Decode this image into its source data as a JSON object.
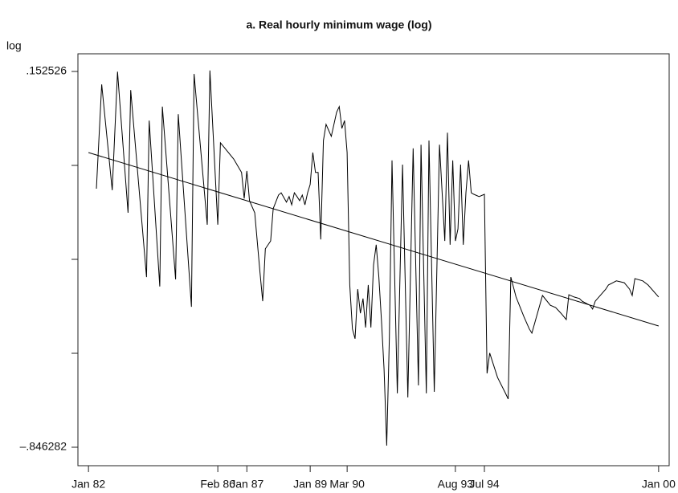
{
  "chart_data": {
    "type": "line",
    "title": "a. Real hourly minimum wage (log)",
    "y_label": "log",
    "xlim": [
      "1981-09",
      "2000-05"
    ],
    "ylim": [
      -0.8954,
      0.1995
    ],
    "xticks": [
      {
        "value": "1982-01",
        "label": "Jan 82"
      },
      {
        "value": "1986-02",
        "label": "Feb 86"
      },
      {
        "value": "1987-01",
        "label": "Jan 87"
      },
      {
        "value": "1989-01",
        "label": "Jan 89"
      },
      {
        "value": "1990-03",
        "label": "Mar 90"
      },
      {
        "value": "1993-08",
        "label": "Aug 93"
      },
      {
        "value": "1994-07",
        "label": "Jul 94"
      },
      {
        "value": "2000-01",
        "label": "Jan 00"
      }
    ],
    "yticks": [
      {
        "value": 0.152526,
        "label": ".152526"
      },
      {
        "value": -0.097176
      },
      {
        "value": -0.346879
      },
      {
        "value": -0.596581
      },
      {
        "value": -0.846282,
        "label": "–.846282"
      }
    ],
    "series": [
      {
        "color": "#000000",
        "x": [
          "1982-04",
          "1982-06",
          "1982-10",
          "1982-12",
          "1983-04",
          "1983-05",
          "1983-11",
          "1983-12",
          "1984-04",
          "1984-05",
          "1984-10",
          "1984-11",
          "1985-04",
          "1985-05",
          "1985-10",
          "1985-11",
          "1986-02",
          "1986-03",
          "1986-08",
          "1986-11",
          "1986-12",
          "1987-01",
          "1987-02",
          "1987-04",
          "1987-06",
          "1987-07",
          "1987-08",
          "1987-10",
          "1987-11",
          "1988-01",
          "1988-02",
          "1988-04",
          "1988-05",
          "1988-06",
          "1988-07",
          "1988-08",
          "1988-09",
          "1988-10",
          "1988-11",
          "1988-12",
          "1989-01",
          "1989-02",
          "1989-03",
          "1989-04",
          "1989-05",
          "1989-06",
          "1989-07",
          "1989-09",
          "1989-11",
          "1989-12",
          "1990-01",
          "1990-02",
          "1990-03",
          "1990-04",
          "1990-05",
          "1990-06",
          "1990-07",
          "1990-08",
          "1990-09",
          "1990-10",
          "1990-11",
          "1990-12",
          "1991-01",
          "1991-02",
          "1991-03",
          "1991-04",
          "1991-05",
          "1991-06",
          "1991-07",
          "1991-08",
          "1991-10",
          "1991-12",
          "1992-02",
          "1992-04",
          "1992-06",
          "1992-07",
          "1992-09",
          "1992-10",
          "1992-12",
          "1993-02",
          "1993-04",
          "1993-05",
          "1993-06",
          "1993-07",
          "1993-08",
          "1993-09",
          "1993-10",
          "1993-11",
          "1993-12",
          "1994-01",
          "1994-02",
          "1994-03",
          "1994-05",
          "1994-07",
          "1994-08",
          "1994-09",
          "1994-12",
          "1995-03",
          "1995-04",
          "1995-05",
          "1995-07",
          "1995-10",
          "1995-12",
          "1996-01",
          "1996-05",
          "1996-08",
          "1996-10",
          "1996-12",
          "1997-02",
          "1997-03",
          "1997-05",
          "1997-07",
          "1997-08",
          "1997-11",
          "1997-12",
          "1998-01",
          "1998-05",
          "1998-06",
          "1998-09",
          "1998-12",
          "1999-02",
          "1999-03",
          "1999-04",
          "1999-07",
          "1999-09",
          "2000-01"
        ],
        "values": [
          -0.159,
          0.118,
          -0.163,
          0.152,
          -0.223,
          0.103,
          -0.394,
          0.022,
          -0.419,
          0.059,
          -0.4,
          0.039,
          -0.473,
          0.146,
          -0.255,
          0.155,
          -0.255,
          -0.037,
          -0.08,
          -0.116,
          -0.185,
          -0.112,
          -0.191,
          -0.223,
          -0.383,
          -0.458,
          -0.319,
          -0.298,
          -0.212,
          -0.176,
          -0.17,
          -0.195,
          -0.18,
          -0.202,
          -0.17,
          -0.18,
          -0.191,
          -0.176,
          -0.202,
          -0.17,
          -0.148,
          -0.063,
          -0.116,
          -0.116,
          -0.294,
          -0.031,
          0.012,
          -0.02,
          0.044,
          0.059,
          0.001,
          0.022,
          -0.063,
          -0.415,
          -0.532,
          -0.558,
          -0.426,
          -0.49,
          -0.451,
          -0.528,
          -0.415,
          -0.528,
          -0.362,
          -0.308,
          -0.394,
          -0.511,
          -0.639,
          -0.842,
          -0.554,
          -0.084,
          -0.703,
          -0.095,
          -0.714,
          -0.052,
          -0.682,
          -0.042,
          -0.703,
          -0.031,
          -0.699,
          -0.042,
          -0.298,
          -0.01,
          -0.308,
          -0.084,
          -0.298,
          -0.266,
          -0.095,
          -0.308,
          -0.17,
          -0.084,
          -0.17,
          -0.174,
          -0.18,
          -0.174,
          -0.65,
          -0.596,
          -0.661,
          -0.703,
          -0.718,
          -0.394,
          -0.447,
          -0.5,
          -0.532,
          -0.543,
          -0.443,
          -0.469,
          -0.475,
          -0.49,
          -0.507,
          -0.441,
          -0.447,
          -0.451,
          -0.458,
          -0.469,
          -0.479,
          -0.458,
          -0.426,
          -0.415,
          -0.404,
          -0.409,
          -0.426,
          -0.443,
          -0.398,
          -0.404,
          -0.415,
          -0.447
        ]
      },
      {
        "color": "#000000",
        "x": [
          "1982-01",
          "2000-01"
        ],
        "values": [
          -0.063,
          -0.524
        ]
      }
    ]
  }
}
